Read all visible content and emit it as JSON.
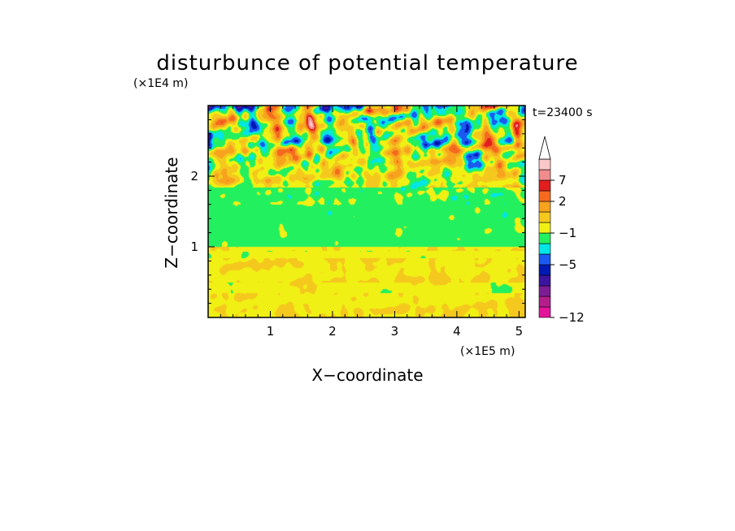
{
  "chart_data": {
    "type": "heatmap",
    "title": "disturbunce of potential temperature",
    "xlabel": "X−coordinate",
    "ylabel": "Z−coordinate",
    "x_unit": "(×1E5 m)",
    "y_unit": "(×1E4 m)",
    "time_label": "t=23400 s",
    "xlim": [
      0,
      5.1
    ],
    "ylim": [
      0,
      3.0
    ],
    "x_ticks": [
      1,
      2,
      3,
      4,
      5
    ],
    "y_ticks": [
      1,
      2
    ],
    "x_tick_labels": [
      "1",
      "2",
      "3",
      "4",
      "5"
    ],
    "y_tick_labels": [
      "1",
      "2"
    ],
    "colorbar": {
      "extend": "max",
      "colors": [
        "#e4149a",
        "#b41e8c",
        "#7d1d96",
        "#3c14a0",
        "#0019b4",
        "#1b5af0",
        "#00e6e6",
        "#23f05f",
        "#f0f014",
        "#f5c81e",
        "#f7a31e",
        "#f56a1e",
        "#e21e1e",
        "#f08c8c",
        "#fac8c8",
        "#ffffff"
      ],
      "tick_labels": [
        "−12",
        "−5",
        "−1",
        "2",
        "7"
      ],
      "tick_levels": [
        0,
        5,
        8,
        11,
        13
      ]
    },
    "description_levels": {
      "upper_layer_z_range": [
        1.8,
        3.0
      ],
      "upper_layer_values": "alternating −5 to 7",
      "mid_layer_z_range": [
        1.0,
        1.8
      ],
      "mid_layer_value": "−1 to 0",
      "lower_layer_z_range": [
        0,
        1.0
      ],
      "lower_layer_value": "0 to 2"
    }
  }
}
